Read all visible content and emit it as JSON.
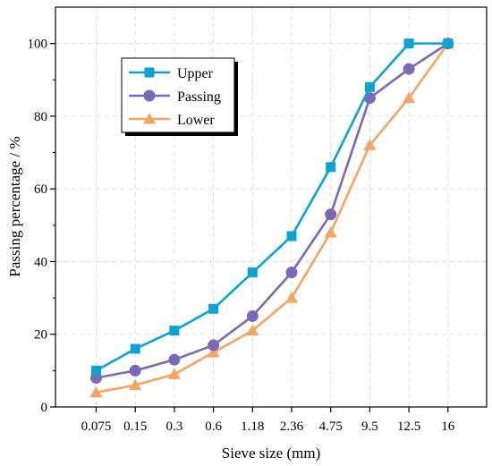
{
  "chart_data": {
    "type": "line",
    "xlabel": "Sieve size (mm)",
    "ylabel": "Passing percentage / %",
    "categories": [
      "0.075",
      "0.15",
      "0.3",
      "0.6",
      "1.18",
      "2.36",
      "4.75",
      "9.5",
      "12.5",
      "16"
    ],
    "ylim": [
      0,
      110
    ],
    "yticks": [
      0,
      20,
      40,
      60,
      80,
      100
    ],
    "grid": true,
    "legend_position": "top-left",
    "series": [
      {
        "name": "Upper",
        "color": "#0aa3d2",
        "marker": "square",
        "values": [
          10,
          16,
          21,
          27,
          37,
          47,
          66,
          88,
          100,
          100
        ]
      },
      {
        "name": "Passing",
        "color": "#7b68b8",
        "marker": "circle",
        "values": [
          8,
          10,
          13,
          17,
          25,
          37,
          53,
          85,
          93,
          100
        ]
      },
      {
        "name": "Lower",
        "color": "#f6a461",
        "marker": "triangle",
        "values": [
          4,
          6,
          9,
          15,
          21,
          30,
          48,
          72,
          85,
          100
        ]
      }
    ]
  }
}
